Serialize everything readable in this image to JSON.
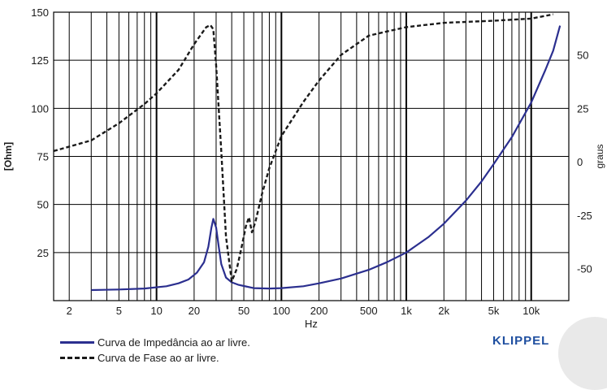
{
  "chart_data": {
    "type": "line",
    "title": "",
    "xlabel": "Hz",
    "ylabel_left": "[Ohm]",
    "ylabel_right": "graus",
    "x_scale": "log",
    "xlim": [
      1.5,
      20000
    ],
    "ylim_left": [
      0,
      150
    ],
    "ylim_right": [
      -65,
      70
    ],
    "x_ticks": [
      {
        "v": 2,
        "l": "2"
      },
      {
        "v": 5,
        "l": "5"
      },
      {
        "v": 10,
        "l": "10"
      },
      {
        "v": 20,
        "l": "20"
      },
      {
        "v": 50,
        "l": "50"
      },
      {
        "v": 100,
        "l": "100"
      },
      {
        "v": 200,
        "l": "200"
      },
      {
        "v": 500,
        "l": "500"
      },
      {
        "v": 1000,
        "l": "1k"
      },
      {
        "v": 2000,
        "l": "2k"
      },
      {
        "v": 5000,
        "l": "5k"
      },
      {
        "v": 10000,
        "l": "10k"
      }
    ],
    "y_ticks_left": [
      25,
      50,
      75,
      100,
      125,
      150
    ],
    "y_ticks_right": [
      -50,
      -25,
      0,
      25,
      50
    ],
    "grid": true,
    "series": [
      {
        "name": "Curva de Impedância ao ar livre.",
        "axis": "left",
        "style": "solid",
        "x": [
          3,
          5,
          8,
          12,
          15,
          18,
          21,
          24,
          26,
          27.5,
          28.5,
          30,
          31.5,
          33,
          36,
          40,
          45,
          50,
          60,
          80,
          100,
          150,
          200,
          300,
          500,
          700,
          1000,
          1500,
          2000,
          3000,
          4000,
          5000,
          7000,
          10000,
          13000,
          15000,
          17000
        ],
        "values": [
          5.5,
          5.8,
          6.3,
          7.5,
          9,
          11,
          14.5,
          20,
          28,
          38,
          42.5,
          38,
          28,
          19,
          12,
          9.5,
          8.3,
          7.6,
          6.5,
          6.3,
          6.5,
          7.5,
          9,
          11.5,
          16,
          20,
          25,
          33,
          40,
          52,
          62,
          71,
          85,
          103,
          120,
          130,
          143
        ]
      },
      {
        "name": "Curva de Fase ao ar livre.",
        "axis": "right",
        "style": "dashed",
        "x": [
          1.5,
          3,
          5,
          8,
          10,
          15,
          20,
          25,
          27,
          28.5,
          30,
          33,
          36,
          40,
          44,
          48,
          52,
          55,
          58,
          62,
          70,
          80,
          100,
          150,
          200,
          300,
          500,
          700,
          1000,
          2000,
          5000,
          10000,
          15000
        ],
        "values": [
          5,
          10,
          18,
          27,
          32,
          43,
          55,
          63,
          64,
          62,
          45,
          5,
          -35,
          -56,
          -50,
          -40,
          -30,
          -26,
          -33,
          -28,
          -15,
          -3,
          12,
          28,
          38,
          50,
          59,
          61,
          63,
          65,
          66,
          67,
          69
        ]
      }
    ]
  },
  "legend": {
    "items": [
      {
        "label": "Curva de Impedância ao ar livre."
      },
      {
        "label": "Curva de Fase ao ar livre."
      }
    ]
  },
  "brand": {
    "text": "KLIPPEL"
  },
  "colors": {
    "impedance": "#2b2f8f",
    "phase": "#1a1a1a",
    "grid": "#000000",
    "brand": "#1f4fa0"
  }
}
